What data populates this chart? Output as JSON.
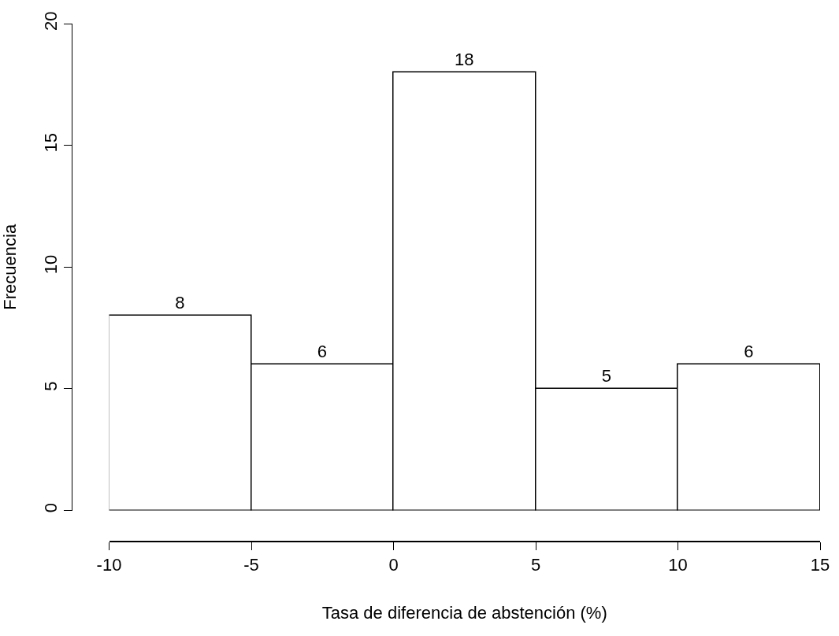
{
  "chart_data": {
    "type": "histogram",
    "xlabel": "Tasa de diferencia de abstención (%)",
    "ylabel": "Frecuencia",
    "bins": [
      -10,
      -5,
      0,
      5,
      10,
      15
    ],
    "values": [
      8,
      6,
      18,
      5,
      6
    ],
    "color": "#ffffff",
    "data_labels": true,
    "xlim": [
      -10,
      15
    ],
    "xticks": [
      -10,
      -5,
      0,
      5,
      10,
      15
    ],
    "ylim": [
      0,
      20
    ],
    "yticks": [
      0,
      5,
      10,
      15,
      20
    ]
  }
}
